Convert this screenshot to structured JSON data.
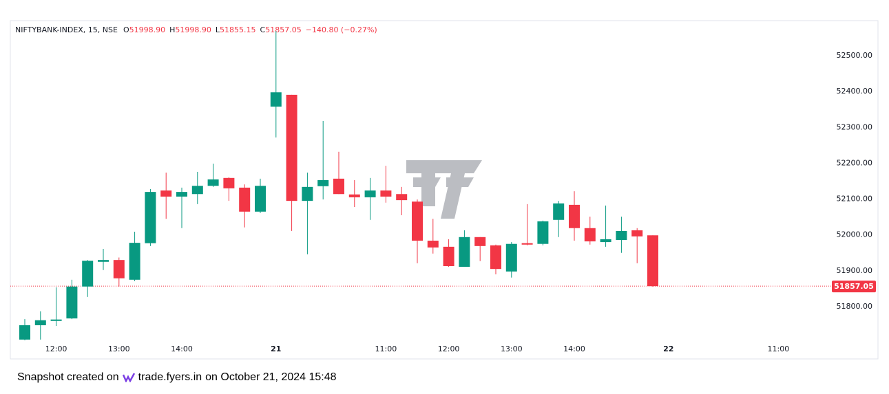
{
  "chart_data": {
    "type": "candlestick",
    "symbol": "NIFTYBANK-INDEX, 15, NSE",
    "legend": [
      {
        "key": "O",
        "value": "51998.90"
      },
      {
        "key": "H",
        "value": "51998.90"
      },
      {
        "key": "L",
        "value": "51855.15"
      },
      {
        "key": "C",
        "value": "51857.05"
      }
    ],
    "change": "−140.80 (−0.27%)",
    "up_color": "#089981",
    "down_color": "#f23645",
    "categories": [
      null,
      null,
      "12:00",
      null,
      null,
      null,
      "13:00",
      null,
      null,
      null,
      "14:00",
      null,
      null,
      null,
      null,
      null,
      "21",
      null,
      null,
      null,
      null,
      null,
      null,
      "11:00",
      null,
      null,
      null,
      "12:00",
      null,
      null,
      null,
      "13:00",
      null,
      null,
      null,
      "14:00",
      null,
      null,
      null,
      null,
      null,
      "22",
      null,
      null,
      null,
      null,
      null,
      null,
      "11:00",
      null,
      null,
      null
    ],
    "open": [
      51708,
      51748,
      51760,
      51767,
      51856,
      51925,
      51930,
      51875,
      51977,
      52124,
      52107,
      52114,
      52137,
      52159,
      52132,
      52065,
      52358,
      52391,
      52095,
      52136,
      52157,
      52113,
      52105,
      52124,
      52114,
      52093,
      51984,
      51967,
      51911,
      51994,
      51971,
      51898,
      51977,
      51975,
      52042,
      52084,
      52019,
      51980,
      51986,
      52013,
      51998.9,
      null,
      null,
      null,
      null,
      null,
      null,
      null,
      null,
      null,
      null,
      null
    ],
    "high": [
      51765,
      51787,
      51854,
      51875,
      51930,
      51961,
      51937,
      52009,
      52128,
      52174,
      52132,
      52176,
      52199,
      52161,
      52141,
      52157,
      52569,
      52391,
      52174,
      52318,
      52232,
      52153,
      52159,
      52193,
      52134,
      52099,
      52045,
      51988,
      52013,
      51994,
      51973,
      51980,
      52086,
      52040,
      52095,
      52122,
      52051,
      52082,
      52051,
      52019,
      51998.9,
      null,
      null,
      null,
      null,
      null,
      null,
      null,
      null,
      null,
      null,
      null
    ],
    "low": [
      51706,
      51708,
      51746,
      51765,
      51827,
      51902,
      51856,
      51871,
      51969,
      52045,
      52019,
      52086,
      52134,
      52095,
      52021,
      52061,
      52272,
      52011,
      51946,
      52099,
      52114,
      52078,
      52042,
      52090,
      52055,
      51921,
      51948,
      51911,
      51911,
      51927,
      51890,
      51881,
      51971,
      51971,
      51994,
      51984,
      51973,
      51967,
      51950,
      51921,
      51855.15,
      null,
      null,
      null,
      null,
      null,
      null,
      null,
      null,
      null,
      null,
      null
    ],
    "close": [
      51748,
      51762,
      51764,
      51856,
      51928,
      51930,
      51879,
      51978,
      52120,
      52107,
      52120,
      52137,
      52155,
      52130,
      52065,
      52137,
      52398,
      52095,
      52134,
      52153,
      52114,
      52105,
      52124,
      52107,
      52097,
      51984,
      51965,
      51913,
      51994,
      51969,
      51905,
      51975,
      51973,
      52038,
      52088,
      52019,
      51982,
      51988,
      52011,
      51996,
      51857.05,
      null,
      null,
      null,
      null,
      null,
      null,
      null,
      null,
      null,
      null,
      null
    ],
    "ylim": [
      51654,
      52598
    ],
    "yticks": [
      {
        "value": 51800,
        "label": "51800.00"
      },
      {
        "value": 51900,
        "label": "51900.00"
      },
      {
        "value": 52000,
        "label": "52000.00"
      },
      {
        "value": 52100,
        "label": "52100.00"
      },
      {
        "value": 52200,
        "label": "52200.00"
      },
      {
        "value": 52300,
        "label": "52300.00"
      },
      {
        "value": 52400,
        "label": "52400.00"
      },
      {
        "value": 52500,
        "label": "52500.00"
      }
    ],
    "last_price": {
      "value": 51857.05,
      "label": "51857.05"
    }
  },
  "footer": {
    "prefix": "Snapshot created on",
    "site": "trade.fyers.in",
    "suffix": "on October 21, 2024 15:48"
  }
}
